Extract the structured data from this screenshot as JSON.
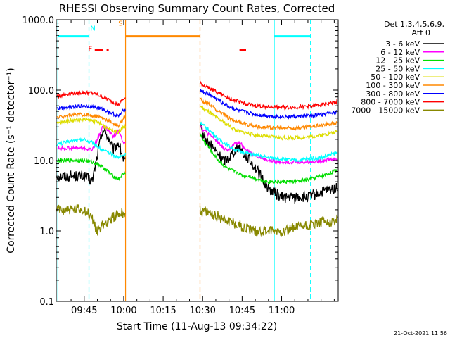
{
  "chart_data": {
    "type": "line",
    "title": "RHESSI Observing Summary Count Rates, Corrected",
    "xlabel": "Start Time (11-Aug-13 09:34:22)",
    "ylabel": "Corrected Count Rate (s⁻¹ detector⁻¹)",
    "y_scale": "log",
    "ylim": [
      0.1,
      1000.0
    ],
    "y_ticks": [
      0.1,
      1.0,
      10.0,
      100.0,
      1000.0
    ],
    "y_tick_labels": [
      "0.1",
      "1.0",
      "10.0",
      "100.0",
      "1000.0"
    ],
    "xlim": [
      34.37,
      141.5
    ],
    "x_ticks": [
      45,
      60,
      75,
      90,
      105,
      120
    ],
    "x_tick_labels": [
      "09:45",
      "10:00",
      "10:15",
      "10:30",
      "10:45",
      "11:00"
    ],
    "legend_header": [
      "Det 1,3,4,5,6,9,",
      "Att 0"
    ],
    "legend_placement": "right",
    "timestamp": "21-Oct-2021 11:56",
    "gap": [
      60.7,
      89.0
    ],
    "series": [
      {
        "name": "3 - 6 keV",
        "color": "#000000",
        "x": [
          35,
          40,
          45,
          48,
          50,
          52,
          54,
          56,
          58,
          60,
          89,
          90,
          92,
          94,
          96,
          98,
          100,
          102,
          104,
          106,
          108,
          110,
          112,
          115,
          120,
          125,
          130,
          135,
          140,
          141.5
        ],
        "y": [
          6,
          6,
          6,
          5,
          12,
          28,
          22,
          14,
          18,
          10,
          30,
          24,
          18,
          15,
          12,
          10,
          11,
          14,
          16,
          12,
          10,
          8,
          6,
          4,
          3,
          3,
          3,
          3.5,
          4,
          4
        ]
      },
      {
        "name": "6 - 12 keV",
        "color": "#ff00ff",
        "x": [
          35,
          40,
          45,
          48,
          50,
          52,
          54,
          56,
          58,
          60,
          89,
          90,
          92,
          94,
          96,
          98,
          100,
          102,
          104,
          106,
          108,
          110,
          112,
          115,
          120,
          125,
          130,
          135,
          140,
          141.5
        ],
        "y": [
          15,
          15,
          15,
          14,
          20,
          30,
          28,
          22,
          26,
          18,
          32,
          28,
          24,
          21,
          18,
          15,
          14,
          17,
          18,
          15,
          13,
          12,
          11,
          10,
          9.5,
          9.5,
          9.5,
          10,
          10.5,
          10.5
        ]
      },
      {
        "name": "12 - 25 keV",
        "color": "#00dd00",
        "x": [
          35,
          40,
          45,
          48,
          50,
          52,
          54,
          56,
          58,
          60,
          89,
          90,
          92,
          94,
          96,
          98,
          100,
          102,
          104,
          106,
          108,
          110,
          112,
          115,
          120,
          125,
          130,
          135,
          140,
          141.5
        ],
        "y": [
          10,
          10,
          10,
          9.5,
          9,
          8,
          7,
          6,
          5.5,
          6.5,
          24,
          20,
          16,
          12.5,
          10,
          8.5,
          7.5,
          7,
          6.5,
          6,
          6,
          5.5,
          5.3,
          5,
          5,
          5,
          5.3,
          6,
          7,
          7.5
        ]
      },
      {
        "name": "25 - 50 keV",
        "color": "#00ffff",
        "x": [
          35,
          40,
          45,
          48,
          50,
          52,
          54,
          56,
          58,
          60,
          89,
          90,
          92,
          94,
          96,
          98,
          100,
          102,
          104,
          106,
          108,
          110,
          112,
          115,
          120,
          125,
          130,
          135,
          140,
          141.5
        ],
        "y": [
          17,
          19,
          20,
          18,
          16,
          14,
          13,
          12,
          11,
          12,
          36,
          32,
          28,
          24,
          20,
          18,
          16,
          14.5,
          13.5,
          13,
          12.5,
          12,
          11.5,
          11,
          10.5,
          10,
          10.5,
          11,
          12.5,
          13
        ]
      },
      {
        "name": "50 - 100 keV",
        "color": "#dddd00",
        "x": [
          35,
          40,
          45,
          48,
          50,
          52,
          54,
          56,
          58,
          60,
          89,
          90,
          92,
          94,
          96,
          98,
          100,
          102,
          104,
          106,
          108,
          110,
          112,
          115,
          120,
          125,
          130,
          135,
          140,
          141.5
        ],
        "y": [
          34,
          37,
          38,
          37,
          35,
          32,
          29,
          27,
          25,
          30,
          60,
          55,
          50,
          44,
          39,
          35,
          31,
          28,
          26,
          25,
          24,
          23,
          22.5,
          22,
          21,
          21,
          21.5,
          23,
          25,
          26
        ]
      },
      {
        "name": "100 - 300 keV",
        "color": "#ff8800",
        "x": [
          35,
          40,
          45,
          48,
          50,
          52,
          54,
          56,
          58,
          60,
          89,
          90,
          92,
          94,
          96,
          98,
          100,
          102,
          104,
          106,
          108,
          110,
          112,
          115,
          120,
          125,
          130,
          135,
          140,
          141.5
        ],
        "y": [
          41,
          44,
          45,
          44,
          42,
          40,
          37,
          34,
          31,
          40,
          75,
          70,
          64,
          57,
          50,
          45,
          40,
          37,
          35,
          33,
          32,
          31,
          30,
          29.5,
          29,
          29,
          30,
          32,
          34,
          35
        ]
      },
      {
        "name": "300 - 800 keV",
        "color": "#0000ff",
        "x": [
          35,
          40,
          45,
          48,
          50,
          52,
          54,
          56,
          58,
          60,
          89,
          90,
          92,
          94,
          96,
          98,
          100,
          102,
          104,
          106,
          108,
          110,
          112,
          115,
          120,
          125,
          130,
          135,
          140,
          141.5
        ],
        "y": [
          55,
          58,
          60,
          58,
          56,
          53,
          50,
          46,
          42,
          52,
          100,
          95,
          88,
          80,
          72,
          65,
          58,
          54,
          51,
          49,
          47,
          45,
          44,
          43,
          42,
          42,
          43,
          45,
          48,
          50
        ]
      },
      {
        "name": "800 - 7000 keV",
        "color": "#ff0000",
        "x": [
          35,
          40,
          45,
          48,
          50,
          52,
          54,
          56,
          58,
          60,
          89,
          90,
          92,
          94,
          96,
          98,
          100,
          102,
          104,
          106,
          108,
          110,
          112,
          115,
          120,
          125,
          130,
          135,
          140,
          141.5
        ],
        "y": [
          82,
          90,
          92,
          90,
          86,
          80,
          74,
          68,
          62,
          75,
          125,
          118,
          110,
          100,
          92,
          84,
          77,
          72,
          68,
          65,
          62,
          60,
          59,
          58,
          57,
          57,
          59,
          62,
          67,
          70
        ]
      },
      {
        "name": "7000 - 15000 keV",
        "color": "#888800",
        "x": [
          35,
          40,
          45,
          48,
          50,
          52,
          54,
          56,
          58,
          60,
          89,
          90,
          92,
          94,
          96,
          98,
          100,
          102,
          104,
          106,
          108,
          110,
          112,
          115,
          120,
          125,
          130,
          135,
          140,
          141.5
        ],
        "y": [
          2,
          2,
          2,
          1.5,
          1,
          1.2,
          1.4,
          1.6,
          1.7,
          1.8,
          2,
          1.9,
          1.8,
          1.7,
          1.6,
          1.5,
          1.4,
          1.3,
          1.2,
          1.1,
          1.05,
          1.0,
          1.0,
          1.0,
          1.0,
          1.1,
          1.2,
          1.3,
          1.4,
          1.5
        ]
      }
    ],
    "time_markers": [
      {
        "x": 35.0,
        "color": "#00ffff",
        "style": "solid"
      },
      {
        "x": 46.8,
        "color": "#00ffff",
        "style": "dashed"
      },
      {
        "x": 60.7,
        "color": "#ff8800",
        "style": "solid"
      },
      {
        "x": 89.0,
        "color": "#ff8800",
        "style": "dashed"
      },
      {
        "x": 117.2,
        "color": "#00ffff",
        "style": "solid"
      },
      {
        "x": 131.0,
        "color": "#00ffff",
        "style": "dashed"
      }
    ],
    "flag_bars": [
      {
        "x0": 35.0,
        "x1": 46.8,
        "y": 580,
        "color": "#00ffff"
      },
      {
        "x0": 60.7,
        "x1": 89.0,
        "y": 580,
        "color": "#ff8800"
      },
      {
        "x0": 117.2,
        "x1": 131.0,
        "y": 580,
        "color": "#00ffff"
      },
      {
        "x0": 49.0,
        "x1": 52.0,
        "y": 370,
        "color": "#ff0000"
      },
      {
        "x0": 53.5,
        "x1": 54.3,
        "y": 370,
        "color": "#ff0000"
      },
      {
        "x0": 104.0,
        "x1": 106.5,
        "y": 370,
        "color": "#ff0000"
      }
    ],
    "flag_labels": [
      {
        "text": "N",
        "x": 48.3,
        "y": 700,
        "color": "#00ffff"
      },
      {
        "text": "S",
        "x": 58.8,
        "y": 820,
        "color": "#ff8800"
      },
      {
        "text": "F",
        "x": 47.3,
        "y": 360,
        "color": "#ff0000"
      }
    ]
  }
}
